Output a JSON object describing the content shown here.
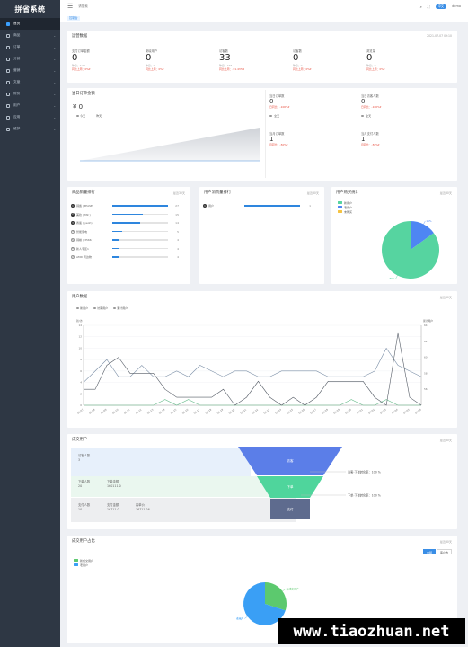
{
  "app": {
    "logo": "拼省系统"
  },
  "sidebar": {
    "items": [
      {
        "label": "首页",
        "icon": "home-icon",
        "active": true
      },
      {
        "label": "商品",
        "icon": "box-icon"
      },
      {
        "label": "订单",
        "icon": "order-icon"
      },
      {
        "label": "分销",
        "icon": "share-icon"
      },
      {
        "label": "营销",
        "icon": "gift-icon"
      },
      {
        "label": "文章",
        "icon": "article-icon"
      },
      {
        "label": "财务",
        "icon": "finance-icon"
      },
      {
        "label": "用户",
        "icon": "user-icon"
      },
      {
        "label": "应用",
        "icon": "app-icon"
      },
      {
        "label": "维护",
        "icon": "gear-icon"
      }
    ]
  },
  "topbar": {
    "search_placeholder": "请搜索",
    "lang": "中文",
    "user": "demo"
  },
  "breadcrumb": {
    "current": "控制台"
  },
  "overview": {
    "title": "运营数据",
    "date": "2021-07-07 09:10",
    "items": [
      {
        "label": "支付订单金额",
        "value": "0",
        "sub1": "昨日：7.00",
        "sub2": "同比上周：0%▾"
      },
      {
        "label": "新增用户",
        "value": "0",
        "sub1": "昨日：0",
        "sub2": "同比上周：0%▾"
      },
      {
        "label": "访客数",
        "value": "33",
        "sub1": "昨日：168",
        "sub2": "同比上周：-91.43%▾"
      },
      {
        "label": "访客数",
        "value": "0",
        "sub1": "昨日：0",
        "sub2": "同比上周：0%▾"
      },
      {
        "label": "浏览量",
        "value": "0",
        "sub1": "昨日：0",
        "sub2": "同比上周：0%▾"
      }
    ]
  },
  "today": {
    "title": "当日订单金额",
    "amount": "¥ 0",
    "legend": [
      "今天",
      "昨天"
    ],
    "stats": [
      {
        "label": "当日订单数",
        "value": "0",
        "sub": "日同比：-100%▾",
        "legend": "全天"
      },
      {
        "label": "当日访客人数",
        "value": "0",
        "sub": "日同比：-100%▾",
        "legend": "全天"
      },
      {
        "label": "当月订单数",
        "value": "1",
        "sub": "月同比：-50%▾"
      },
      {
        "label": "当月支付人数",
        "value": "1",
        "sub": "月同比：-50%▾"
      }
    ]
  },
  "product_rank": {
    "title": "商品销量排行",
    "filter": "最近30天",
    "items": [
      {
        "rank": "1",
        "name": "辣酱 (BEASE)",
        "value": 27,
        "pct": 1.0
      },
      {
        "rank": "2",
        "name": "美妆 ( M9 )",
        "value": 15,
        "pct": 0.55
      },
      {
        "rank": "3",
        "name": "香薰 ( yeoh)",
        "value": 14,
        "pct": 0.5
      },
      {
        "rank": "4",
        "name": "智能家电",
        "value": 5,
        "pct": 0.18
      },
      {
        "rank": "5",
        "name": "辣椒 ( 3566 )",
        "value": 4,
        "pct": 0.13
      },
      {
        "rank": "6",
        "name": "新人专区1",
        "value": 4,
        "pct": 0.13
      },
      {
        "rank": "7",
        "name": "AMD 周边物",
        "value": 4,
        "pct": 0.13
      }
    ]
  },
  "user_spend_rank": {
    "title": "用户消费量排行",
    "filter": "最近30天",
    "items": [
      {
        "rank": "1",
        "name": "用户",
        "value": 1,
        "pct": 1.0
      }
    ]
  },
  "buy_ratio": {
    "title": "用户购买统计",
    "filter": "最近30天",
    "legend": [
      "新用户",
      "老用户",
      "未购买"
    ],
    "chart_data": {
      "type": "pie",
      "labels": [
        "新用户",
        "老用户"
      ],
      "values": [
        15,
        85
      ],
      "colors": [
        "#4e86f3",
        "#56d4a0"
      ],
      "slice_labels": [
        "15%",
        "85%"
      ]
    }
  },
  "user_data": {
    "title": "用户数据",
    "filter": "最近30天",
    "legend": [
      "新用户",
      "访客用户",
      "累计用户"
    ],
    "left_axis_name": "新/访",
    "right_axis_name": "累计用户",
    "chart_data": {
      "type": "line",
      "categories": [
        "06-07",
        "06-08",
        "06-09",
        "06-10",
        "06-11",
        "06-12",
        "06-13",
        "06-14",
        "06-15",
        "06-16",
        "06-17",
        "06-18",
        "06-19",
        "06-20",
        "06-21",
        "06-22",
        "06-23",
        "06-24",
        "06-25",
        "06-26",
        "06-27",
        "06-28",
        "06-29",
        "06-30",
        "07-01",
        "07-02",
        "07-03",
        "07-04",
        "07-05",
        "07-06"
      ],
      "ylim": [
        0,
        14
      ],
      "yticks": [
        0,
        2,
        4,
        6,
        8,
        10,
        12,
        14
      ],
      "y2lim": [
        54,
        64
      ],
      "y2ticks": [
        56,
        58,
        60,
        62,
        64
      ],
      "series": [
        {
          "name": "新用户",
          "axis": "left",
          "color": "#66bb8a",
          "values": [
            0,
            0,
            0,
            0,
            0,
            0,
            0,
            1,
            0,
            1,
            0,
            0,
            0,
            0,
            0,
            0,
            0,
            0,
            0,
            0,
            0,
            0,
            0,
            1,
            0,
            0,
            1,
            0,
            0,
            0
          ]
        },
        {
          "name": "访客用户",
          "axis": "left",
          "color": "#7a8ea6",
          "values": [
            4,
            6,
            8,
            5,
            5,
            7,
            5,
            5,
            6,
            5,
            7,
            6,
            5,
            6,
            6,
            5,
            5,
            6,
            6,
            6,
            6,
            5,
            5,
            5,
            5,
            6,
            10,
            7,
            6,
            5
          ]
        },
        {
          "name": "累计用户",
          "axis": "right",
          "color": "#555c66",
          "values": [
            56,
            56,
            59,
            60,
            58,
            58,
            58,
            56,
            55,
            55,
            55,
            55,
            56,
            54,
            55,
            57,
            55,
            54,
            55,
            54,
            55,
            57,
            57,
            57,
            57,
            55,
            54,
            63,
            55,
            54
          ]
        }
      ]
    }
  },
  "funnel": {
    "title": "成交用户",
    "filter": "最近30天",
    "visitors_label": "访客人数",
    "visitors": "3",
    "row2": [
      {
        "label": "下单人数",
        "value": "20"
      },
      {
        "label": "下单金额",
        "value": "160111.0"
      }
    ],
    "row3": [
      {
        "label": "支付人数",
        "value": "10"
      },
      {
        "label": "支付金额",
        "value": "16711.0"
      },
      {
        "label": "客单价",
        "value": "16711.26"
      }
    ],
    "stages": [
      "访客",
      "下单",
      "支付"
    ],
    "rate1": "访客-下单转化率：100 %",
    "rate2": "下单-下单转化率：100 %"
  },
  "deal_ratio": {
    "title": "成交用户占比",
    "filter": "最近30天",
    "toggle": [
      "金额",
      "客户数"
    ],
    "legend": [
      "新成交用户",
      "老用户"
    ],
    "chart_data": {
      "type": "pie",
      "labels": [
        "新成交用户",
        "老用户"
      ],
      "values": [
        30,
        70
      ],
      "colors": [
        "#5cc96e",
        "#3a9ff5"
      ],
      "slice_labels": [
        "新成交用户",
        "老用户"
      ]
    }
  },
  "watermark": "www.tiaozhuan.net"
}
